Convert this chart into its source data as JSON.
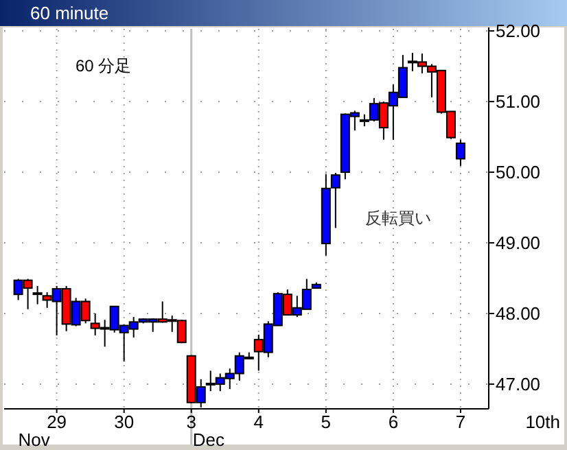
{
  "chart_data": {
    "type": "candlestick",
    "title": "60 minute",
    "categories": [
      null,
      null,
      null,
      null,
      "29",
      null,
      null,
      null,
      null,
      null,
      null,
      "30",
      null,
      null,
      null,
      null,
      null,
      null,
      "3",
      null,
      null,
      null,
      null,
      null,
      null,
      "4",
      null,
      null,
      null,
      null,
      null,
      null,
      "5",
      null,
      null,
      null,
      null,
      null,
      null,
      "6",
      null,
      null,
      null,
      null,
      null,
      null,
      "7"
    ],
    "ohlc": [
      [
        48.27,
        48.49,
        48.19,
        48.47
      ],
      [
        48.47,
        48.49,
        48.06,
        48.36
      ],
      [
        48.29,
        48.39,
        48.13,
        48.28
      ],
      [
        48.25,
        48.3,
        48.08,
        48.19
      ],
      [
        48.17,
        48.39,
        47.69,
        48.35
      ],
      [
        48.35,
        48.39,
        47.75,
        47.85
      ],
      [
        47.84,
        48.22,
        47.82,
        48.17
      ],
      [
        48.17,
        48.21,
        47.86,
        47.9
      ],
      [
        47.86,
        48.0,
        47.69,
        47.79
      ],
      [
        47.8,
        47.91,
        47.53,
        47.79
      ],
      [
        47.77,
        48.1,
        47.73,
        48.1
      ],
      [
        47.73,
        47.84,
        47.32,
        47.83
      ],
      [
        47.78,
        47.95,
        47.66,
        47.88
      ],
      [
        47.88,
        47.93,
        47.86,
        47.92
      ],
      [
        47.88,
        47.93,
        47.74,
        47.92
      ],
      [
        47.92,
        48.17,
        47.87,
        47.88
      ],
      [
        47.91,
        47.97,
        47.74,
        47.9
      ],
      [
        47.9,
        47.91,
        47.58,
        47.59
      ],
      [
        47.4,
        47.41,
        46.73,
        46.74
      ],
      [
        46.74,
        47.07,
        46.67,
        46.96
      ],
      [
        47.0,
        47.19,
        46.9,
        47.01
      ],
      [
        47.0,
        47.15,
        46.9,
        47.09
      ],
      [
        47.08,
        47.22,
        46.93,
        47.15
      ],
      [
        47.15,
        47.45,
        47.05,
        47.4
      ],
      [
        47.37,
        47.45,
        47.35,
        47.38
      ],
      [
        47.63,
        47.7,
        47.19,
        47.46
      ],
      [
        47.45,
        47.89,
        47.38,
        47.85
      ],
      [
        47.83,
        48.3,
        47.83,
        48.28
      ],
      [
        48.27,
        48.34,
        47.98,
        47.98
      ],
      [
        47.98,
        48.25,
        47.95,
        48.08
      ],
      [
        48.06,
        48.49,
        48.06,
        48.34
      ],
      [
        48.36,
        48.44,
        48.35,
        48.41
      ],
      [
        48.99,
        49.97,
        48.82,
        49.77
      ],
      [
        49.78,
        49.99,
        49.21,
        49.96
      ],
      [
        50.0,
        50.83,
        49.9,
        50.82
      ],
      [
        50.79,
        50.87,
        50.59,
        50.84
      ],
      [
        50.73,
        50.82,
        50.65,
        50.74
      ],
      [
        50.74,
        51.05,
        50.72,
        50.97
      ],
      [
        50.98,
        51.0,
        50.46,
        50.63
      ],
      [
        50.94,
        51.24,
        50.46,
        51.13
      ],
      [
        51.06,
        51.66,
        51.06,
        51.48
      ],
      [
        51.57,
        51.69,
        51.43,
        51.56
      ],
      [
        51.56,
        51.68,
        51.4,
        51.5
      ],
      [
        51.5,
        51.53,
        51.06,
        51.42
      ],
      [
        51.44,
        51.44,
        50.83,
        50.85
      ],
      [
        50.86,
        50.86,
        50.47,
        50.49
      ],
      [
        50.19,
        50.46,
        50.09,
        50.41
      ]
    ],
    "colors": [
      "#0000ff",
      "#ff0000",
      "#000000",
      "#ff0000",
      "#0000ff",
      "#ff0000",
      "#0000ff",
      "#ff0000",
      "#ff0000",
      "#000000",
      "#0000ff",
      "#0000ff",
      "#0000ff",
      "#0000ff",
      "#0000ff",
      "#ff0000",
      "#000000",
      "#ff0000",
      "#ff0000",
      "#0000ff",
      "#000000",
      "#0000ff",
      "#0000ff",
      "#0000ff",
      "#000000",
      "#ff0000",
      "#0000ff",
      "#0000ff",
      "#ff0000",
      "#0000ff",
      "#0000ff",
      "#0000ff",
      "#0000ff",
      "#0000ff",
      "#0000ff",
      "#0000ff",
      "#000000",
      "#0000ff",
      "#ff0000",
      "#0000ff",
      "#0000ff",
      "#000000",
      "#ff0000",
      "#ff0000",
      "#ff0000",
      "#ff0000",
      "#0000ff"
    ],
    "ylim": [
      46.65,
      52.03
    ],
    "yticks": [
      {
        "value": 47,
        "label": "47.00"
      },
      {
        "value": 48,
        "label": "48.00"
      },
      {
        "value": 49,
        "label": "49.00"
      },
      {
        "value": 50,
        "label": "50.00"
      },
      {
        "value": 51,
        "label": "51.00"
      },
      {
        "value": 52,
        "label": "52.00"
      }
    ],
    "grid": true,
    "ref_lines": [
      {
        "axis": "x",
        "value": "3",
        "color": "#c0c0c0"
      }
    ],
    "annotations": [
      "60 分足",
      "反転買い",
      "Nov",
      "Dec",
      "10th"
    ]
  }
}
